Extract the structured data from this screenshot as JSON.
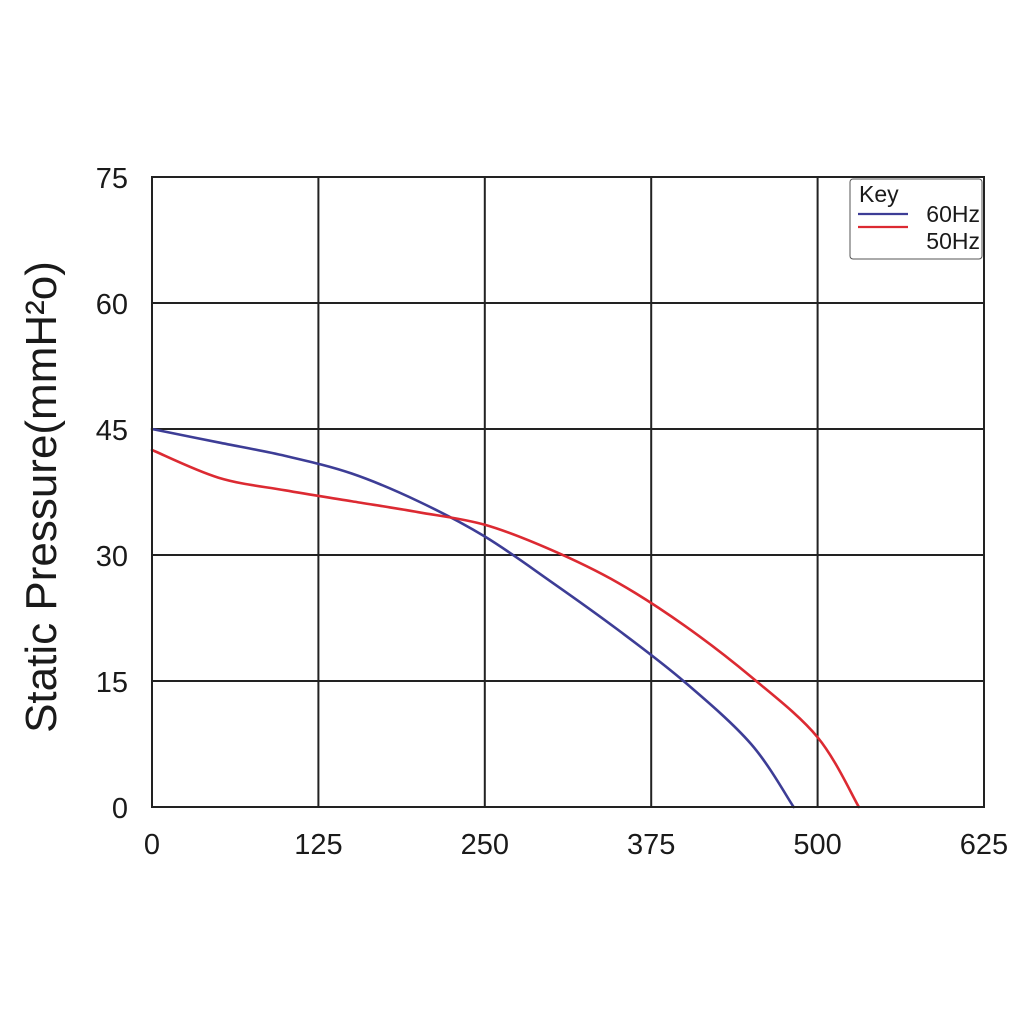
{
  "chart_data": {
    "type": "line",
    "title": "",
    "xlabel": "",
    "ylabel": "Static Pressure(mmH²o)",
    "xlim": [
      0,
      625
    ],
    "ylim": [
      0,
      75
    ],
    "x_ticks": [
      "0",
      "125",
      "250",
      "375",
      "500",
      "625"
    ],
    "y_ticks": [
      "0",
      "15",
      "30",
      "45",
      "60",
      "75"
    ],
    "grid": true,
    "legend": {
      "title": "Key",
      "position": "top-right"
    },
    "series": [
      {
        "name": "60Hz",
        "color": "#3d3d96",
        "x": [
          0,
          50,
          100,
          150,
          200,
          250,
          300,
          350,
          400,
          450,
          482
        ],
        "y": [
          45,
          43.4,
          41.8,
          39.7,
          36.4,
          32.2,
          26.8,
          21.1,
          14.9,
          7.5,
          0
        ]
      },
      {
        "name": "50Hz",
        "color": "#dc2a32",
        "x": [
          0,
          50,
          100,
          150,
          200,
          250,
          300,
          350,
          400,
          450,
          500,
          531
        ],
        "y": [
          42.5,
          39.2,
          37.7,
          36.4,
          35.1,
          33.6,
          30.6,
          26.7,
          21.6,
          15.5,
          8.3,
          0
        ]
      }
    ]
  }
}
